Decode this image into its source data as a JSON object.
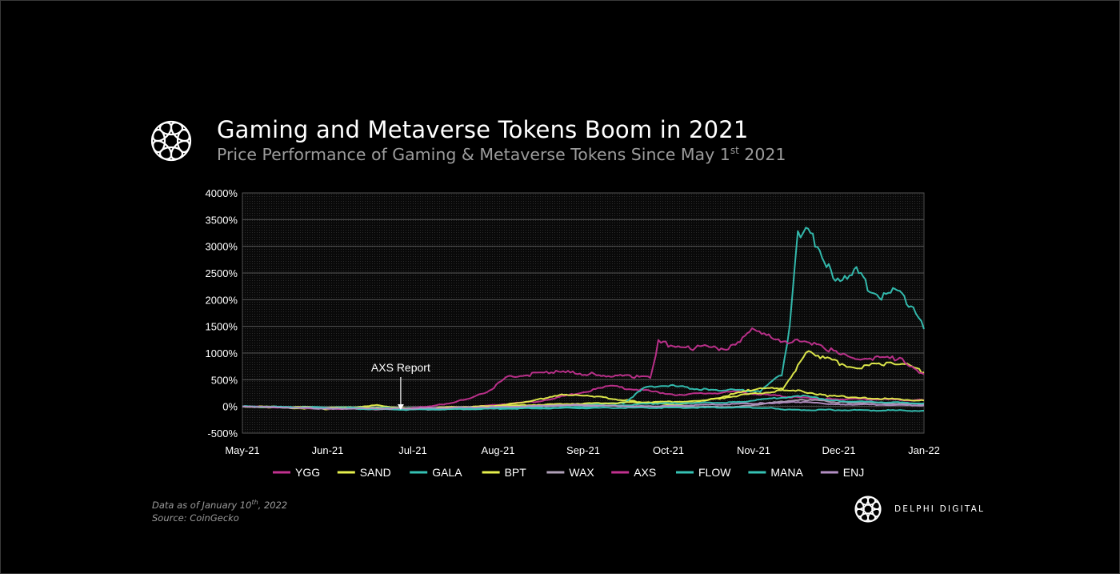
{
  "header": {
    "title": "Gaming and Metaverse Tokens Boom in 2021",
    "subtitle_main": "Price Performance of Gaming & Metaverse Tokens Since May 1",
    "subtitle_sup": "st",
    "subtitle_end": " 2021"
  },
  "footnote": {
    "data_as_of_main": "Data as of January 10",
    "data_as_of_sup": "th",
    "data_as_of_end": ", 2022",
    "source": "Source:  CoinGecko"
  },
  "brand": {
    "name": "DELPHI DIGITAL",
    "logo_icon": "delphi-flower-icon"
  },
  "colors": {
    "background": "#000000",
    "magenta": "#c2318f",
    "yellow": "#e6f04d",
    "teal": "#35c2b4",
    "lavender": "#b48fc4"
  },
  "chart_data": {
    "type": "line",
    "title": "Gaming and Metaverse Tokens Boom in 2021",
    "ylim": [
      -500,
      4000
    ],
    "y_ticks": [
      -500,
      0,
      500,
      1000,
      1500,
      2000,
      2500,
      3000,
      3500,
      4000
    ],
    "y_tick_labels": [
      "-500%",
      "0%",
      "500%",
      "1000%",
      "1500%",
      "2000%",
      "2500%",
      "3000%",
      "3500%",
      "4000%"
    ],
    "x_tick_labels": [
      "May-21",
      "Jun-21",
      "Jul-21",
      "Aug-21",
      "Sep-21",
      "Oct-21",
      "Nov-21",
      "Dec-21",
      "Jan-22"
    ],
    "x_range": [
      "2021-05-01",
      "2022-01-10"
    ],
    "grid": true,
    "legend_position": "bottom",
    "annotation": {
      "text": "AXS Report",
      "date": "2021-06-29"
    },
    "series": [
      {
        "name": "YGG",
        "color": "#c2318f",
        "points": [
          [
            "2021-07-28",
            0
          ],
          [
            "2021-08-20",
            100
          ],
          [
            "2021-09-15",
            380
          ],
          [
            "2021-10-10",
            220
          ],
          [
            "2021-11-01",
            270
          ],
          [
            "2021-11-20",
            180
          ],
          [
            "2021-12-05",
            140
          ],
          [
            "2021-12-25",
            130
          ],
          [
            "2022-01-10",
            115
          ]
        ]
      },
      {
        "name": "SAND",
        "color": "#e6f04d",
        "points": [
          [
            "2021-05-01",
            0
          ],
          [
            "2021-06-01",
            -50
          ],
          [
            "2021-06-20",
            20
          ],
          [
            "2021-07-01",
            -40
          ],
          [
            "2021-08-01",
            0
          ],
          [
            "2021-08-15",
            80
          ],
          [
            "2021-08-28",
            230
          ],
          [
            "2021-09-10",
            180
          ],
          [
            "2021-09-25",
            90
          ],
          [
            "2021-10-10",
            30
          ],
          [
            "2021-11-01",
            200
          ],
          [
            "2021-11-18",
            300
          ],
          [
            "2021-11-24",
            750
          ],
          [
            "2021-11-28",
            1050
          ],
          [
            "2021-12-05",
            880
          ],
          [
            "2021-12-15",
            730
          ],
          [
            "2021-12-27",
            800
          ],
          [
            "2022-01-01",
            820
          ],
          [
            "2022-01-10",
            640
          ]
        ]
      },
      {
        "name": "GALA",
        "color": "#35c2b4",
        "points": [
          [
            "2021-05-01",
            0
          ],
          [
            "2021-07-01",
            -30
          ],
          [
            "2021-08-01",
            -15
          ],
          [
            "2021-09-01",
            30
          ],
          [
            "2021-09-20",
            60
          ],
          [
            "2021-09-28",
            350
          ],
          [
            "2021-10-05",
            400
          ],
          [
            "2021-10-20",
            320
          ],
          [
            "2021-11-10",
            290
          ],
          [
            "2021-11-18",
            600
          ],
          [
            "2021-11-21",
            1500
          ],
          [
            "2021-11-24",
            3300
          ],
          [
            "2021-11-27",
            3280
          ],
          [
            "2021-12-03",
            2900
          ],
          [
            "2021-12-08",
            2300
          ],
          [
            "2021-12-15",
            2600
          ],
          [
            "2021-12-20",
            2250
          ],
          [
            "2021-12-26",
            2050
          ],
          [
            "2022-01-01",
            2200
          ],
          [
            "2022-01-06",
            1800
          ],
          [
            "2022-01-10",
            1450
          ]
        ]
      },
      {
        "name": "BPT",
        "color": "#e6f04d",
        "points": [
          [
            "2021-05-01",
            0
          ],
          [
            "2021-07-01",
            -40
          ],
          [
            "2021-09-01",
            50
          ],
          [
            "2021-10-20",
            100
          ],
          [
            "2021-11-10",
            350
          ],
          [
            "2021-11-24",
            300
          ],
          [
            "2021-12-05",
            200
          ],
          [
            "2021-12-20",
            160
          ],
          [
            "2022-01-10",
            110
          ]
        ]
      },
      {
        "name": "WAX",
        "color": "#b0a0b8",
        "points": [
          [
            "2021-05-01",
            0
          ],
          [
            "2021-06-01",
            -40
          ],
          [
            "2021-07-01",
            -60
          ],
          [
            "2021-08-01",
            -40
          ],
          [
            "2021-09-01",
            30
          ],
          [
            "2021-10-01",
            0
          ],
          [
            "2021-11-01",
            -10
          ],
          [
            "2021-11-25",
            130
          ],
          [
            "2021-12-10",
            80
          ],
          [
            "2022-01-10",
            40
          ]
        ]
      },
      {
        "name": "AXS",
        "color": "#c2318f",
        "points": [
          [
            "2021-05-01",
            0
          ],
          [
            "2021-06-01",
            -40
          ],
          [
            "2021-07-01",
            -50
          ],
          [
            "2021-07-15",
            40
          ],
          [
            "2021-07-25",
            150
          ],
          [
            "2021-08-01",
            300
          ],
          [
            "2021-08-08",
            550
          ],
          [
            "2021-08-25",
            650
          ],
          [
            "2021-09-10",
            600
          ],
          [
            "2021-09-25",
            550
          ],
          [
            "2021-09-30",
            550
          ],
          [
            "2021-10-03",
            1200
          ],
          [
            "2021-10-15",
            1100
          ],
          [
            "2021-10-30",
            1100
          ],
          [
            "2021-11-06",
            1420
          ],
          [
            "2021-11-15",
            1280
          ],
          [
            "2021-11-22",
            1200
          ],
          [
            "2021-12-01",
            1200
          ],
          [
            "2021-12-10",
            950
          ],
          [
            "2021-12-20",
            900
          ],
          [
            "2022-01-01",
            900
          ],
          [
            "2022-01-10",
            600
          ]
        ]
      },
      {
        "name": "FLOW",
        "color": "#35c2b4",
        "points": [
          [
            "2021-05-01",
            0
          ],
          [
            "2021-07-01",
            -50
          ],
          [
            "2021-09-01",
            -20
          ],
          [
            "2021-10-01",
            50
          ],
          [
            "2021-11-01",
            80
          ],
          [
            "2021-11-25",
            200
          ],
          [
            "2021-12-10",
            100
          ],
          [
            "2022-01-10",
            60
          ]
        ]
      },
      {
        "name": "MANA",
        "color": "#35c2b4",
        "points": [
          [
            "2021-05-01",
            0
          ],
          [
            "2021-07-01",
            -60
          ],
          [
            "2021-09-01",
            -30
          ],
          [
            "2021-11-01",
            -20
          ],
          [
            "2021-11-15",
            -30
          ],
          [
            "2021-11-20",
            -60
          ],
          [
            "2022-01-10",
            -80
          ]
        ]
      },
      {
        "name": "ENJ",
        "color": "#b48fc4",
        "points": [
          [
            "2021-05-01",
            0
          ],
          [
            "2021-06-01",
            -40
          ],
          [
            "2021-07-01",
            -40
          ],
          [
            "2021-09-01",
            20
          ],
          [
            "2021-10-01",
            0
          ],
          [
            "2021-11-10",
            60
          ],
          [
            "2021-11-25",
            80
          ],
          [
            "2021-12-10",
            40
          ],
          [
            "2022-01-10",
            20
          ]
        ]
      }
    ]
  }
}
